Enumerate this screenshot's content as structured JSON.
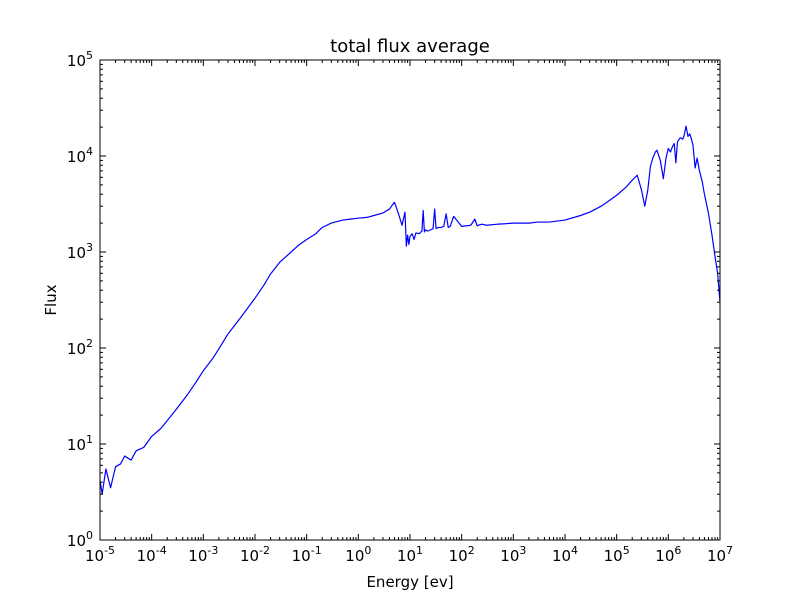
{
  "chart_data": {
    "type": "line",
    "title": "total flux average",
    "xlabel": "Energy [ev]",
    "ylabel": "Flux",
    "xscale": "log",
    "yscale": "log",
    "xlim": [
      1e-05,
      10000000.0
    ],
    "ylim": [
      1,
      100000
    ],
    "grid": false,
    "line_color": "#0000ff",
    "x_ticks": [
      {
        "base": "10",
        "exp": "-5"
      },
      {
        "base": "10",
        "exp": "-4"
      },
      {
        "base": "10",
        "exp": "-3"
      },
      {
        "base": "10",
        "exp": "-2"
      },
      {
        "base": "10",
        "exp": "-1"
      },
      {
        "base": "10",
        "exp": "0"
      },
      {
        "base": "10",
        "exp": "1"
      },
      {
        "base": "10",
        "exp": "2"
      },
      {
        "base": "10",
        "exp": "3"
      },
      {
        "base": "10",
        "exp": "4"
      },
      {
        "base": "10",
        "exp": "5"
      },
      {
        "base": "10",
        "exp": "6"
      },
      {
        "base": "10",
        "exp": "7"
      }
    ],
    "y_ticks": [
      {
        "base": "10",
        "exp": "0"
      },
      {
        "base": "10",
        "exp": "1"
      },
      {
        "base": "10",
        "exp": "2"
      },
      {
        "base": "10",
        "exp": "3"
      },
      {
        "base": "10",
        "exp": "4"
      },
      {
        "base": "10",
        "exp": "5"
      }
    ],
    "series": [
      {
        "x": [
          1e-05,
          1.1e-05,
          1.3e-05,
          1.6e-05,
          2e-05,
          2.5e-05,
          3e-05,
          4e-05,
          5e-05,
          7e-05,
          0.0001,
          0.00015,
          0.0002,
          0.0003,
          0.0005,
          0.0007,
          0.001,
          0.0015,
          0.002,
          0.003,
          0.005,
          0.007,
          0.01,
          0.015,
          0.02,
          0.03,
          0.05,
          0.07,
          0.1,
          0.15,
          0.2,
          0.3,
          0.5,
          0.7,
          1,
          1.5,
          2,
          3,
          4,
          5,
          6,
          7,
          8,
          8.5,
          9,
          9.5,
          10,
          11,
          12,
          13,
          15,
          17,
          18,
          19,
          20,
          22,
          25,
          28,
          30,
          32,
          35,
          40,
          45,
          50,
          55,
          60,
          70,
          100,
          150,
          180,
          200,
          210,
          250,
          300,
          500,
          700,
          1000,
          1500,
          2000,
          3000,
          5000,
          7000,
          10000,
          20000,
          30000,
          50000,
          70000,
          100000,
          150000,
          200000,
          250000,
          300000,
          350000,
          400000,
          450000,
          500000,
          550000,
          600000,
          700000,
          800000,
          900000,
          1000000,
          1100000,
          1200000,
          1300000,
          1400000,
          1500000,
          1700000,
          1900000,
          2000000,
          2200000,
          2400000,
          2600000,
          2800000,
          3000000,
          3300000,
          3600000,
          4000000,
          4500000,
          5000000,
          6000000,
          7000000,
          8000000,
          9000000,
          10000000
        ],
        "y": [
          4.2,
          3.0,
          5.5,
          3.5,
          5.8,
          6.2,
          7.5,
          6.8,
          8.5,
          9.2,
          12.0,
          14.5,
          17.5,
          23.0,
          33.0,
          43.0,
          58.0,
          77.0,
          98.0,
          140.0,
          200.0,
          255.0,
          330.0,
          455.0,
          590.0,
          780.0,
          1000.0,
          1180.0,
          1350.0,
          1550.0,
          1800.0,
          2000.0,
          2150.0,
          2200.0,
          2250.0,
          2300.0,
          2400.0,
          2550.0,
          2800.0,
          3300.0,
          2500.0,
          1900.0,
          2600.0,
          1150.0,
          1500.0,
          1200.0,
          1450.0,
          1550.0,
          1350.0,
          1580.0,
          1550.0,
          1650.0,
          2700.0,
          1620.0,
          1700.0,
          1650.0,
          1700.0,
          1750.0,
          2800.0,
          1750.0,
          1800.0,
          1800.0,
          1850.0,
          2500.0,
          1800.0,
          1850.0,
          2350.0,
          1850.0,
          1900.0,
          2200.0,
          1870.0,
          1900.0,
          1950.0,
          1900.0,
          1950.0,
          1970.0,
          2000.0,
          2000.0,
          2000.0,
          2050.0,
          2050.0,
          2100.0,
          2150.0,
          2400.0,
          2600.0,
          3000.0,
          3400.0,
          3900.0,
          4700.0,
          5600.0,
          6300.0,
          4500.0,
          3000.0,
          4400.0,
          7800.0,
          9500.0,
          10800.0,
          11500.0,
          9000.0,
          5800.0,
          9500.0,
          12000.0,
          11000.0,
          12500.0,
          13500.0,
          8500.0,
          14000.0,
          15500.0,
          15000.0,
          16000.0,
          20500.0,
          16000.0,
          17000.0,
          15000.0,
          13000.0,
          7500.0,
          9500.0,
          7000.0,
          5500.0,
          4000.0,
          2500.0,
          1500.0,
          900.0,
          600.0,
          300.0
        ]
      }
    ]
  }
}
